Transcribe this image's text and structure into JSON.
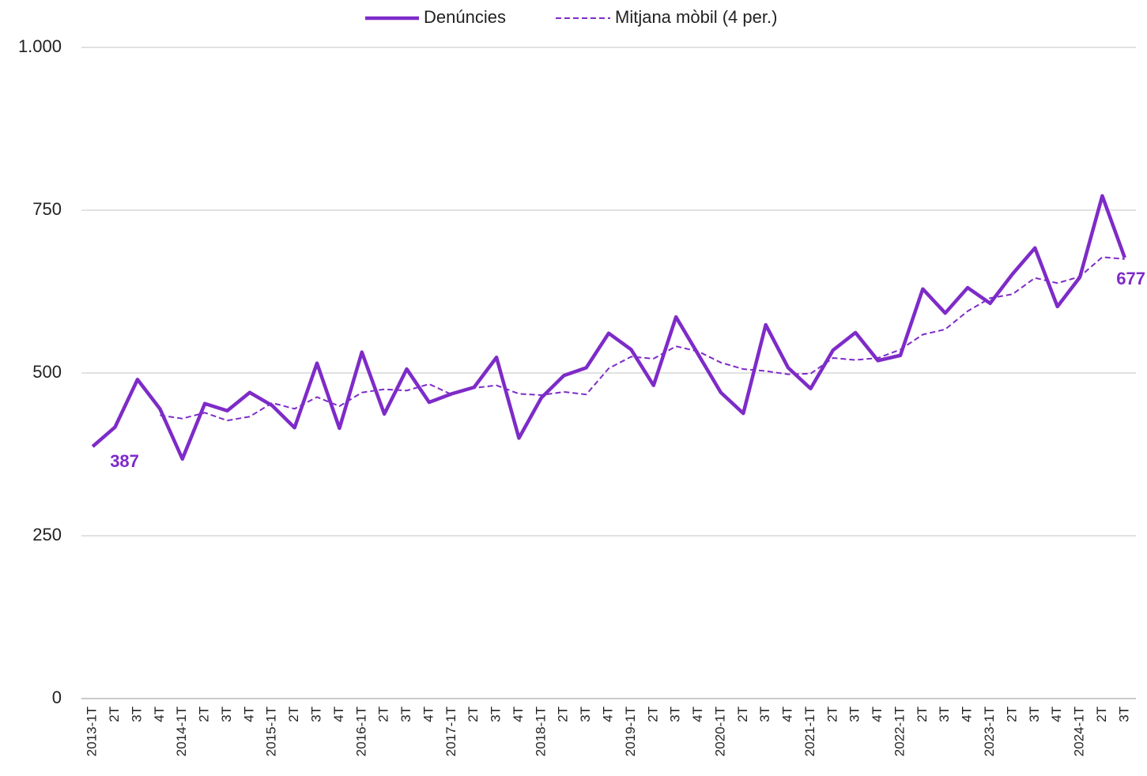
{
  "chart_data": {
    "type": "line",
    "categories": [
      "2013-1T",
      "2T",
      "3T",
      "4T",
      "2014-1T",
      "2T",
      "3T",
      "4T",
      "2015-1T",
      "2T",
      "3T",
      "4T",
      "2016-1T",
      "2T",
      "3T",
      "4T",
      "2017-1T",
      "2T",
      "3T",
      "4T",
      "2018-1T",
      "2T",
      "3T",
      "4T",
      "2019-1T",
      "2T",
      "3T",
      "4T",
      "2020-1T",
      "2T",
      "3T",
      "4T",
      "2021-1T",
      "2T",
      "3T",
      "4T",
      "2022-1T",
      "2T",
      "3T",
      "4T",
      "2023-1T",
      "2T",
      "3T",
      "4T",
      "2024-1T",
      "2T",
      "3T"
    ],
    "series": [
      {
        "name": "Denúncies",
        "color": "#7e2bc8",
        "style": "solid",
        "values": [
          387,
          417,
          490,
          445,
          368,
          453,
          442,
          470,
          450,
          416,
          515,
          415,
          532,
          437,
          506,
          455,
          468,
          478,
          524,
          400,
          462,
          496,
          508,
          561,
          536,
          481,
          586,
          528,
          470,
          438,
          574,
          508,
          476,
          535,
          562,
          519,
          527,
          629,
          592,
          631,
          607,
          652,
          692,
          602,
          647,
          772,
          677
        ]
      },
      {
        "name": "Mitjana mòbil (4 per.)",
        "color": "#7e2bc8",
        "style": "dashed",
        "values": [
          null,
          null,
          null,
          435,
          430,
          439,
          427,
          433,
          454,
          445,
          463,
          449,
          470,
          475,
          473,
          483,
          467,
          477,
          481,
          468,
          466,
          471,
          467,
          507,
          525,
          522,
          541,
          533,
          516,
          506,
          503,
          498,
          499,
          523,
          520,
          523,
          536,
          559,
          567,
          595,
          615,
          621,
          646,
          638,
          648,
          678,
          675
        ]
      }
    ],
    "ylim": [
      0,
      1000
    ],
    "yticks": [
      0,
      250,
      500,
      750,
      {
        "value": 1000,
        "label": "1.000"
      }
    ],
    "grid": true,
    "legend": "top"
  }
}
